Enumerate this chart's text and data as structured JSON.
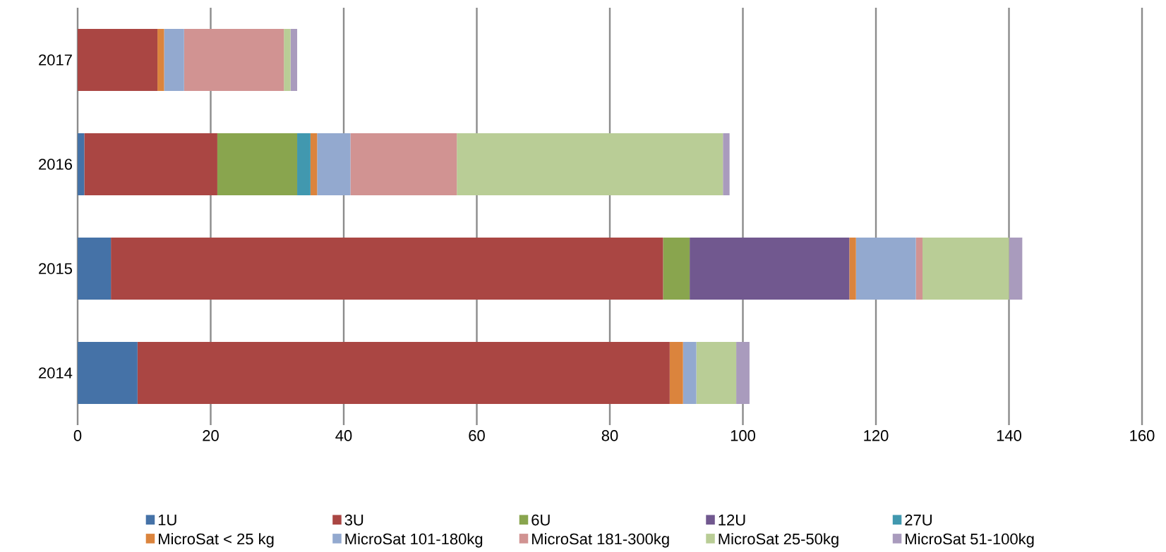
{
  "chart_data": {
    "type": "bar",
    "orientation": "horizontal",
    "stacked": true,
    "categories": [
      "2017",
      "2016",
      "2015",
      "2014"
    ],
    "series": [
      {
        "name": "1U",
        "color": "#4572a7",
        "values": [
          0,
          1,
          5,
          9
        ]
      },
      {
        "name": "3U",
        "color": "#aa4643",
        "values": [
          12,
          20,
          83,
          80
        ]
      },
      {
        "name": "6U",
        "color": "#89a54e",
        "values": [
          0,
          12,
          4,
          0
        ]
      },
      {
        "name": "12U",
        "color": "#71588f",
        "values": [
          0,
          0,
          24,
          0
        ]
      },
      {
        "name": "27U",
        "color": "#4198af",
        "values": [
          0,
          2,
          0,
          0
        ]
      },
      {
        "name": "MicroSat < 25 kg",
        "color": "#db843d",
        "values": [
          1,
          1,
          1,
          2
        ]
      },
      {
        "name": "MicroSat 101-180kg",
        "color": "#93a9cf",
        "values": [
          3,
          5,
          9,
          2
        ]
      },
      {
        "name": "MicroSat 181-300kg",
        "color": "#d19392",
        "values": [
          15,
          16,
          1,
          0
        ]
      },
      {
        "name": "MicroSat 25-50kg",
        "color": "#b9cd96",
        "values": [
          1,
          40,
          13,
          6
        ]
      },
      {
        "name": "MicroSat 51-100kg",
        "color": "#a99bbd",
        "values": [
          1,
          1,
          2,
          2
        ]
      }
    ],
    "xlim": [
      0,
      160
    ],
    "xticks": [
      0,
      20,
      40,
      60,
      80,
      100,
      120,
      140,
      160
    ],
    "grid": "x",
    "legend": "bottom"
  }
}
